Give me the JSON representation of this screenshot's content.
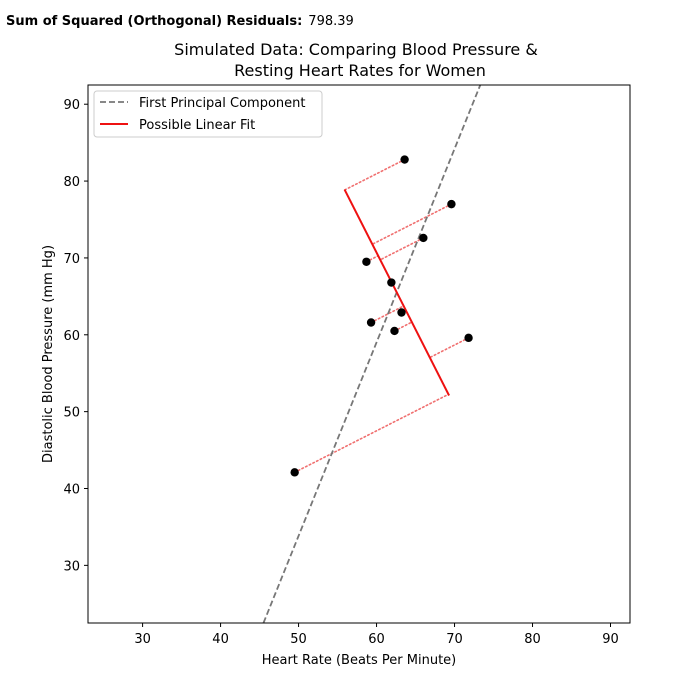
{
  "residuals_readout": {
    "label": "Sum of Squared (Orthogonal) Residuals:",
    "value": "798.39"
  },
  "chart_data": {
    "type": "scatter",
    "title": "Simulated Data: Comparing Blood Pressure &\nResting Heart Rates for Women",
    "xlabel": "Heart Rate (Beats Per Minute)",
    "ylabel": "Diastolic Blood Pressure (mm Hg)",
    "xlim": [
      23,
      92.5
    ],
    "ylim": [
      22.5,
      92.5
    ],
    "xticks": [
      30,
      40,
      50,
      60,
      70,
      80,
      90
    ],
    "yticks": [
      30,
      40,
      50,
      60,
      70,
      80,
      90
    ],
    "grid": false,
    "legend_position": "upper left",
    "points": [
      {
        "x": 63.6,
        "y": 82.8
      },
      {
        "x": 69.6,
        "y": 77.0
      },
      {
        "x": 66.0,
        "y": 72.6
      },
      {
        "x": 58.7,
        "y": 69.5
      },
      {
        "x": 61.9,
        "y": 66.8
      },
      {
        "x": 63.2,
        "y": 62.9
      },
      {
        "x": 59.3,
        "y": 61.6
      },
      {
        "x": 62.3,
        "y": 60.5
      },
      {
        "x": 71.8,
        "y": 59.6
      },
      {
        "x": 49.5,
        "y": 42.1
      }
    ],
    "point_color": "#000000",
    "series": [
      {
        "name": "First Principal Component",
        "style": "dashed",
        "color": "#777777",
        "x": [
          45.5,
          73.3
        ],
        "y": [
          22.5,
          92.5
        ]
      },
      {
        "name": "Possible Linear Fit",
        "style": "solid",
        "color": "#ee1111",
        "x": [
          55.9,
          69.3
        ],
        "y": [
          78.9,
          52.1
        ]
      }
    ],
    "residual_color": "#f07070",
    "residual_style": "dotted"
  }
}
